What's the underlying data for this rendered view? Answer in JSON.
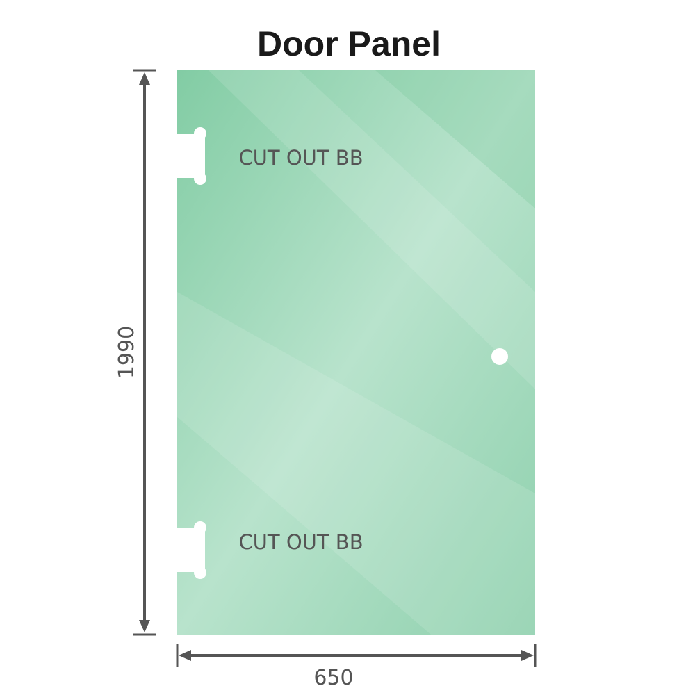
{
  "title": "Door Panel",
  "dimensions": {
    "height": "1990",
    "width": "650"
  },
  "cutouts": [
    {
      "label": "CUT OUT BB"
    },
    {
      "label": "CUT OUT BB"
    }
  ],
  "colors": {
    "glass": "#8fd0ae",
    "dimension_line": "#555555",
    "label_text": "#555555"
  }
}
